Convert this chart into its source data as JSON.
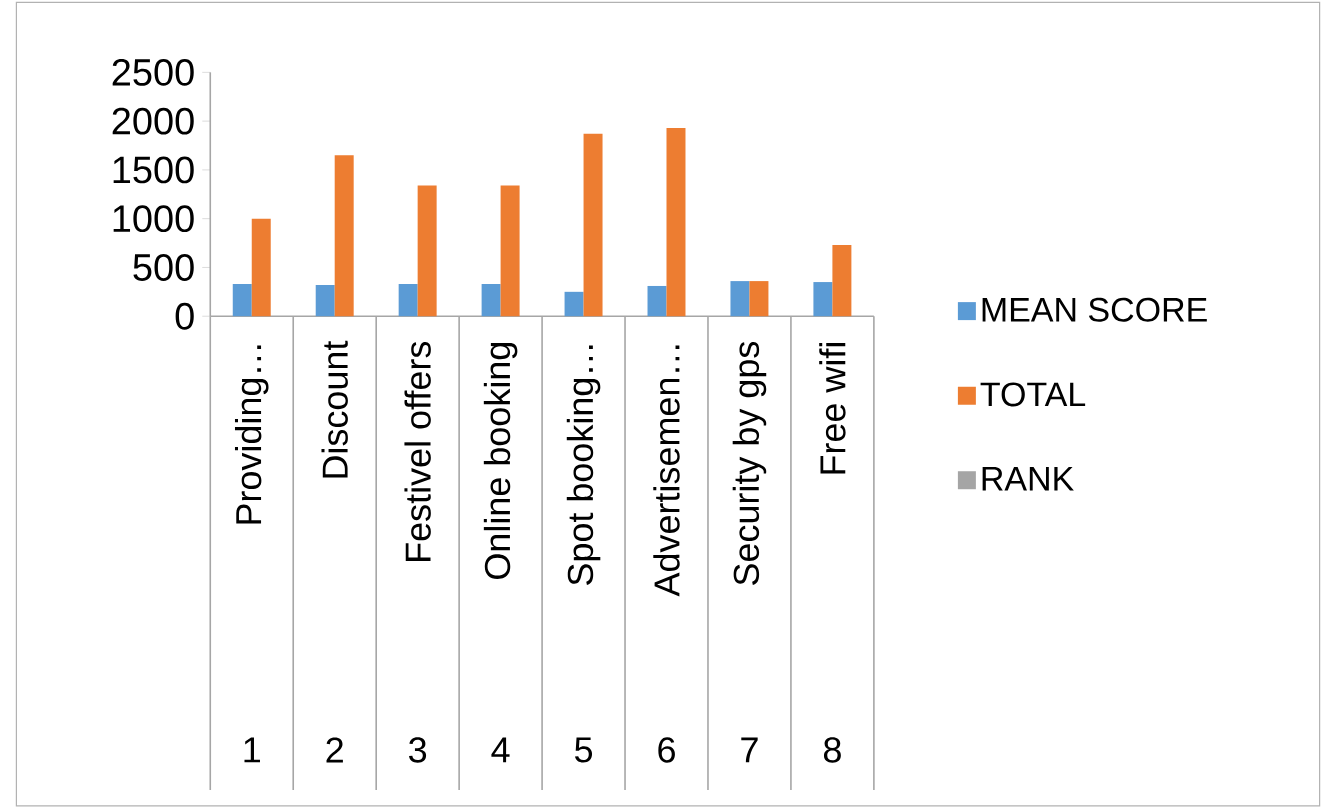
{
  "chart_data": {
    "type": "bar",
    "categories": [
      "Providing…",
      "Discount",
      "Festivel offers",
      "Online booking",
      "Spot booking…",
      "Advertisemen…",
      "Security by gps",
      "Free wifi"
    ],
    "series": [
      {
        "name": "MEAN SCORE",
        "color": "#5b9bd5",
        "values": [
          330,
          320,
          330,
          330,
          250,
          310,
          360,
          350
        ]
      },
      {
        "name": "TOTAL",
        "color": "#ed7d31",
        "values": [
          1000,
          1650,
          1340,
          1340,
          1870,
          1930,
          360,
          730
        ]
      },
      {
        "name": "RANK",
        "color": "#a5a5a5",
        "values": [
          null,
          null,
          null,
          null,
          null,
          null,
          null,
          null
        ]
      }
    ],
    "annotations": [
      "1",
      "2",
      "3",
      "4",
      "5",
      "6",
      "7",
      "8"
    ],
    "ylim": [
      0,
      2500
    ],
    "yticks": [
      0,
      500,
      1000,
      1500,
      2000,
      2500
    ],
    "grid": false,
    "legend": "right"
  }
}
